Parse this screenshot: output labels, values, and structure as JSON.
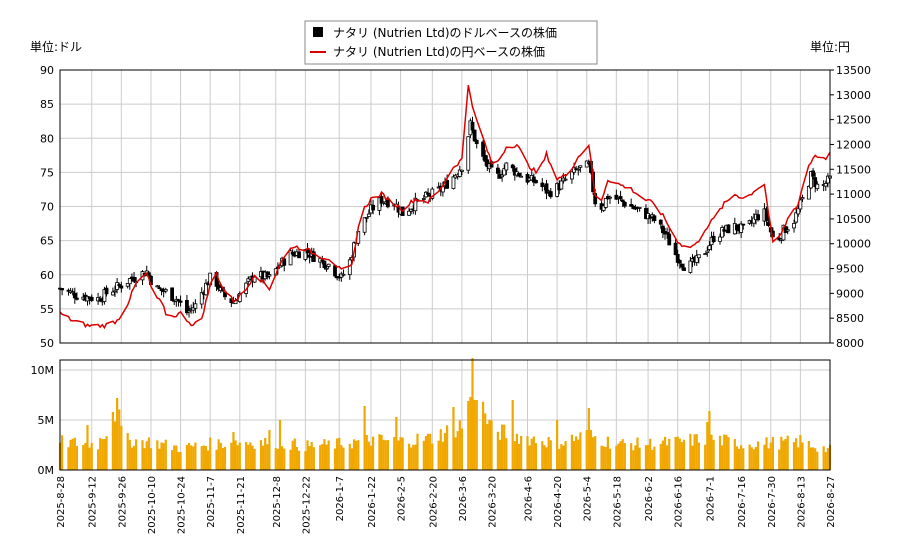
{
  "chart_data": [
    {
      "type": "candlestick+line",
      "title": "",
      "legend": {
        "placement": "top-center",
        "entries": [
          {
            "label": "ナタリ (Nutrien Ltd)のドルベースの株価",
            "marker": "square",
            "color": "#000000"
          },
          {
            "label": "ナタリ (Nutrien Ltd)の円ベースの株価",
            "marker": "line",
            "color": "#dd0000"
          }
        ]
      },
      "ylabel_left": "単位:ドル",
      "ylabel_right": "単位:円",
      "ylim_left": [
        50,
        90
      ],
      "ylim_right": [
        8000,
        13500
      ],
      "yticks_left": [
        50,
        55,
        60,
        65,
        70,
        75,
        80,
        85,
        90
      ],
      "yticks_right": [
        8000,
        8500,
        9000,
        9500,
        10000,
        10500,
        11000,
        11500,
        12000,
        12500,
        13000,
        13500
      ],
      "grid": true,
      "series": [
        {
          "name": "ナタリ (Nutrien Ltd)のドルベースの株価",
          "axis": "left",
          "anchors": [
            [
              "2025-08-28",
              58.0
            ],
            [
              "2025-09-05",
              57.0
            ],
            [
              "2025-09-15",
              56.5
            ],
            [
              "2025-09-20",
              57.5
            ],
            [
              "2025-09-26",
              58.5
            ],
            [
              "2025-10-01",
              59.5
            ],
            [
              "2025-10-08",
              60.5
            ],
            [
              "2025-10-12",
              58.0
            ],
            [
              "2025-10-17",
              57.5
            ],
            [
              "2025-10-22",
              56.5
            ],
            [
              "2025-10-27",
              54.5
            ],
            [
              "2025-10-31",
              55.5
            ],
            [
              "2025-11-04",
              58.0
            ],
            [
              "2025-11-08",
              60.0
            ],
            [
              "2025-11-13",
              57.0
            ],
            [
              "2025-11-18",
              56.0
            ],
            [
              "2025-11-23",
              58.0
            ],
            [
              "2025-11-28",
              60.0
            ],
            [
              "2025-12-05",
              59.5
            ],
            [
              "2025-12-10",
              61.5
            ],
            [
              "2025-12-15",
              63.0
            ],
            [
              "2025-12-22",
              63.5
            ],
            [
              "2025-12-27",
              62.5
            ],
            [
              "2026-01-02",
              61.5
            ],
            [
              "2026-01-08",
              59.5
            ],
            [
              "2026-01-12",
              62.0
            ],
            [
              "2026-01-16",
              66.5
            ],
            [
              "2026-01-22",
              69.5
            ],
            [
              "2026-01-27",
              71.0
            ],
            [
              "2026-02-02",
              70.5
            ],
            [
              "2026-02-06",
              69.0
            ],
            [
              "2026-02-12",
              70.5
            ],
            [
              "2026-02-18",
              71.5
            ],
            [
              "2026-02-24",
              72.5
            ],
            [
              "2026-03-01",
              74.0
            ],
            [
              "2026-03-06",
              76.0
            ],
            [
              "2026-03-10",
              82.0
            ],
            [
              "2026-03-14",
              78.0
            ],
            [
              "2026-03-18",
              76.0
            ],
            [
              "2026-03-22",
              74.0
            ],
            [
              "2026-03-27",
              76.0
            ],
            [
              "2026-04-01",
              75.0
            ],
            [
              "2026-04-06",
              74.0
            ],
            [
              "2026-04-11",
              73.5
            ],
            [
              "2026-04-16",
              72.0
            ],
            [
              "2026-04-21",
              73.0
            ],
            [
              "2026-04-26",
              74.5
            ],
            [
              "2026-04-30",
              75.5
            ],
            [
              "2026-05-05",
              76.0
            ],
            [
              "2026-05-09",
              69.0
            ],
            [
              "2026-05-14",
              71.5
            ],
            [
              "2026-05-19",
              71.0
            ],
            [
              "2026-05-25",
              70.0
            ],
            [
              "2026-05-31",
              69.0
            ],
            [
              "2026-06-05",
              68.0
            ],
            [
              "2026-06-10",
              66.0
            ],
            [
              "2026-06-15",
              63.0
            ],
            [
              "2026-06-20",
              61.0
            ],
            [
              "2026-06-25",
              62.0
            ],
            [
              "2026-06-29",
              63.5
            ],
            [
              "2026-07-03",
              65.5
            ],
            [
              "2026-07-08",
              66.5
            ],
            [
              "2026-07-13",
              67.0
            ],
            [
              "2026-07-18",
              66.5
            ],
            [
              "2026-07-23",
              68.5
            ],
            [
              "2026-07-27",
              69.0
            ],
            [
              "2026-08-01",
              64.5
            ],
            [
              "2026-08-05",
              66.5
            ],
            [
              "2026-08-10",
              68.0
            ],
            [
              "2026-08-14",
              71.0
            ],
            [
              "2026-08-18",
              74.5
            ],
            [
              "2026-08-22",
              72.5
            ],
            [
              "2026-08-27",
              74.0
            ]
          ]
        },
        {
          "name": "ナタリ (Nutrien Ltd)の円ベースの株価",
          "axis": "right",
          "anchors": [
            [
              "2025-08-28",
              8600
            ],
            [
              "2025-09-03",
              8450
            ],
            [
              "2025-09-10",
              8350
            ],
            [
              "2025-09-18",
              8350
            ],
            [
              "2025-09-24",
              8450
            ],
            [
              "2025-09-28",
              8700
            ],
            [
              "2025-10-03",
              9200
            ],
            [
              "2025-10-08",
              9400
            ],
            [
              "2025-10-11",
              9000
            ],
            [
              "2025-10-15",
              8800
            ],
            [
              "2025-10-18",
              8500
            ],
            [
              "2025-10-24",
              8600
            ],
            [
              "2025-10-30",
              8350
            ],
            [
              "2025-11-03",
              8500
            ],
            [
              "2025-11-06",
              9000
            ],
            [
              "2025-11-09",
              9500
            ],
            [
              "2025-11-13",
              9100
            ],
            [
              "2025-11-18",
              8850
            ],
            [
              "2025-11-23",
              9000
            ],
            [
              "2025-11-28",
              9400
            ],
            [
              "2025-12-05",
              9100
            ],
            [
              "2025-12-10",
              9600
            ],
            [
              "2025-12-16",
              9950
            ],
            [
              "2025-12-22",
              9900
            ],
            [
              "2025-12-28",
              9750
            ],
            [
              "2026-01-03",
              9700
            ],
            [
              "2026-01-08",
              9450
            ],
            [
              "2026-01-13",
              9550
            ],
            [
              "2026-01-17",
              10600
            ],
            [
              "2026-01-22",
              10900
            ],
            [
              "2026-01-27",
              11000
            ],
            [
              "2026-02-02",
              10800
            ],
            [
              "2026-02-06",
              10700
            ],
            [
              "2026-02-12",
              10900
            ],
            [
              "2026-02-18",
              10850
            ],
            [
              "2026-02-24",
              11100
            ],
            [
              "2026-03-01",
              11500
            ],
            [
              "2026-03-06",
              11700
            ],
            [
              "2026-03-09",
              13200
            ],
            [
              "2026-03-12",
              12600
            ],
            [
              "2026-03-17",
              12000
            ],
            [
              "2026-03-21",
              11500
            ],
            [
              "2026-03-27",
              11950
            ],
            [
              "2026-04-01",
              12000
            ],
            [
              "2026-04-06",
              11600
            ],
            [
              "2026-04-11",
              11400
            ],
            [
              "2026-04-15",
              11800
            ],
            [
              "2026-04-20",
              11300
            ],
            [
              "2026-04-25",
              11400
            ],
            [
              "2026-04-30",
              11750
            ],
            [
              "2026-05-05",
              12000
            ],
            [
              "2026-05-09",
              10600
            ],
            [
              "2026-05-14",
              11300
            ],
            [
              "2026-05-19",
              11200
            ],
            [
              "2026-05-25",
              11100
            ],
            [
              "2026-05-31",
              10900
            ],
            [
              "2026-06-05",
              10800
            ],
            [
              "2026-06-10",
              10500
            ],
            [
              "2026-06-15",
              10100
            ],
            [
              "2026-06-20",
              9900
            ],
            [
              "2026-06-25",
              10000
            ],
            [
              "2026-06-29",
              10300
            ],
            [
              "2026-07-03",
              10500
            ],
            [
              "2026-07-08",
              10800
            ],
            [
              "2026-07-13",
              11000
            ],
            [
              "2026-07-18",
              10900
            ],
            [
              "2026-07-23",
              11100
            ],
            [
              "2026-07-27",
              11200
            ],
            [
              "2026-07-31",
              10000
            ],
            [
              "2026-08-04",
              10200
            ],
            [
              "2026-08-08",
              10600
            ],
            [
              "2026-08-12",
              10800
            ],
            [
              "2026-08-16",
              11500
            ],
            [
              "2026-08-20",
              11800
            ],
            [
              "2026-08-24",
              11700
            ],
            [
              "2026-08-27",
              11800
            ]
          ]
        }
      ],
      "x_tick_labels": [
        "2025-8-28",
        "2025-9-12",
        "2025-9-26",
        "2025-10-10",
        "2025-10-24",
        "2025-11-7",
        "2025-11-21",
        "2025-12-8",
        "2025-12-22",
        "2026-1-7",
        "2026-1-22",
        "2026-2-5",
        "2026-2-20",
        "2026-3-6",
        "2026-3-20",
        "2026-4-6",
        "2026-4-20",
        "2026-5-4",
        "2026-5-18",
        "2026-6-2",
        "2026-6-16",
        "2026-7-1",
        "2026-7-16",
        "2026-7-30",
        "2026-8-13",
        "2026-8-27"
      ]
    },
    {
      "type": "bar",
      "title": "",
      "name": "volume",
      "ylim": [
        0,
        11000000
      ],
      "yticks": [
        0,
        5000000,
        10000000
      ],
      "ytick_labels": [
        "0M",
        "5M",
        "10M"
      ],
      "bar_color": "#f0a800",
      "volume_anchors": [
        [
          "2025-08-28",
          2.8
        ],
        [
          "2025-09-15",
          2.6
        ],
        [
          "2025-09-24",
          6.0
        ],
        [
          "2025-09-27",
          3.0
        ],
        [
          "2025-10-10",
          2.8
        ],
        [
          "2025-10-24",
          2.2
        ],
        [
          "2025-11-07",
          2.6
        ],
        [
          "2025-11-21",
          2.8
        ],
        [
          "2025-12-08",
          2.8
        ],
        [
          "2025-12-22",
          2.4
        ],
        [
          "2026-01-07",
          2.6
        ],
        [
          "2026-01-22",
          3.0
        ],
        [
          "2026-02-05",
          2.9
        ],
        [
          "2026-02-20",
          3.2
        ],
        [
          "2026-03-06",
          4.5
        ],
        [
          "2026-03-11",
          8.5
        ],
        [
          "2026-03-20",
          4.0
        ],
        [
          "2026-04-06",
          3.2
        ],
        [
          "2026-04-20",
          2.7
        ],
        [
          "2026-05-04",
          3.5
        ],
        [
          "2026-05-18",
          2.6
        ],
        [
          "2026-06-02",
          2.6
        ],
        [
          "2026-06-16",
          2.8
        ],
        [
          "2026-07-01",
          3.2
        ],
        [
          "2026-07-16",
          2.6
        ],
        [
          "2026-07-30",
          2.7
        ],
        [
          "2026-08-13",
          2.8
        ],
        [
          "2026-08-27",
          2.0
        ]
      ],
      "spikes": [
        [
          "2025-09-24",
          7.2
        ],
        [
          "2025-09-22",
          5.8
        ],
        [
          "2025-09-10",
          4.5
        ],
        [
          "2026-01-19",
          6.4
        ],
        [
          "2026-02-03",
          5.3
        ],
        [
          "2026-03-02",
          6.3
        ],
        [
          "2026-03-09",
          6.9
        ],
        [
          "2026-03-11",
          11.2
        ],
        [
          "2026-03-13",
          7.0
        ],
        [
          "2026-03-30",
          7.0
        ],
        [
          "2026-04-20",
          5.0
        ],
        [
          "2026-05-05",
          6.2
        ],
        [
          "2026-07-01",
          5.9
        ],
        [
          "2026-06-30",
          4.8
        ],
        [
          "2026-08-13",
          3.5
        ],
        [
          "2025-11-18",
          3.8
        ],
        [
          "2025-12-10",
          5.0
        ],
        [
          "2025-12-05",
          4.0
        ],
        [
          "2026-01-10",
          3.5
        ]
      ]
    }
  ]
}
